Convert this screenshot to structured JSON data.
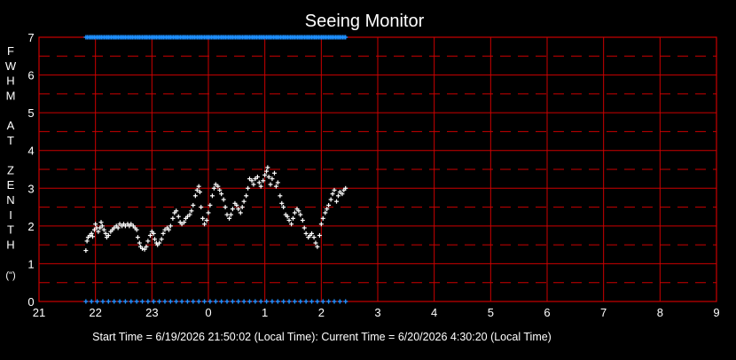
{
  "window": {
    "title": "Seeing Monitor"
  },
  "status": {
    "start_label": "Start Time",
    "start_value": "6/19/2026 21:50:02 (Local Time)",
    "current_label": "Current Time",
    "current_value": "6/20/2026 4:30:20 (Local Time)"
  },
  "colors": {
    "background": "#000000",
    "grid": "#cc0000",
    "points": "#ffffff",
    "markers": "#1e90ff",
    "text": "#ffffff"
  },
  "chart_data": {
    "type": "scatter",
    "title": "Seeing Monitor",
    "ylabel_letters": [
      "F",
      "W",
      "H",
      "M",
      "",
      "A",
      "T",
      "",
      "Z",
      "E",
      "N",
      "I",
      "T",
      "H",
      "",
      "(\")"
    ],
    "xlabel": "",
    "x_axis": "time of day (hours, local time)",
    "xlim": [
      21,
      33
    ],
    "ylim": [
      0,
      7
    ],
    "x_ticks": [
      21,
      22,
      23,
      24,
      25,
      26,
      27,
      28,
      29,
      30,
      31,
      32,
      33
    ],
    "x_tick_labels": [
      "21",
      "22",
      "23",
      "0",
      "1",
      "2",
      "3",
      "4",
      "5",
      "6",
      "7",
      "8",
      "9"
    ],
    "y_ticks": [
      0,
      1,
      2,
      3,
      4,
      5,
      6,
      7
    ],
    "y_tick_labels": [
      "0",
      "1",
      "2",
      "3",
      "4",
      "5",
      "6",
      "7"
    ],
    "y_dashed_lines": [
      0.5,
      1.5,
      2.5,
      3.5,
      4.5,
      5.5,
      6.5
    ],
    "grid": true,
    "legend": "none",
    "series": [
      {
        "marker": "cross",
        "points": [
          [
            21.83,
            1.35
          ],
          [
            21.85,
            1.6
          ],
          [
            21.87,
            1.7
          ],
          [
            21.9,
            1.75
          ],
          [
            21.93,
            1.8
          ],
          [
            21.95,
            1.72
          ],
          [
            21.98,
            1.9
          ],
          [
            22.0,
            2.05
          ],
          [
            22.02,
            1.95
          ],
          [
            22.05,
            1.85
          ],
          [
            22.08,
            1.95
          ],
          [
            22.1,
            2.1
          ],
          [
            22.12,
            2.0
          ],
          [
            22.15,
            1.9
          ],
          [
            22.18,
            1.8
          ],
          [
            22.2,
            1.7
          ],
          [
            22.23,
            1.75
          ],
          [
            22.27,
            1.85
          ],
          [
            22.3,
            1.9
          ],
          [
            22.33,
            1.95
          ],
          [
            22.37,
            2.0
          ],
          [
            22.4,
            1.95
          ],
          [
            22.43,
            2.05
          ],
          [
            22.47,
            2.0
          ],
          [
            22.5,
            2.05
          ],
          [
            22.53,
            2.0
          ],
          [
            22.57,
            2.05
          ],
          [
            22.6,
            2.0
          ],
          [
            22.63,
            2.05
          ],
          [
            22.67,
            2.0
          ],
          [
            22.7,
            1.95
          ],
          [
            22.73,
            1.9
          ],
          [
            22.75,
            1.7
          ],
          [
            22.78,
            1.55
          ],
          [
            22.8,
            1.45
          ],
          [
            22.83,
            1.4
          ],
          [
            22.87,
            1.38
          ],
          [
            22.9,
            1.45
          ],
          [
            22.93,
            1.6
          ],
          [
            22.97,
            1.75
          ],
          [
            23.0,
            1.85
          ],
          [
            23.03,
            1.8
          ],
          [
            23.05,
            1.65
          ],
          [
            23.08,
            1.55
          ],
          [
            23.1,
            1.5
          ],
          [
            23.13,
            1.55
          ],
          [
            23.17,
            1.65
          ],
          [
            23.2,
            1.8
          ],
          [
            23.23,
            1.9
          ],
          [
            23.27,
            1.95
          ],
          [
            23.3,
            1.9
          ],
          [
            23.33,
            2.0
          ],
          [
            23.37,
            2.2
          ],
          [
            23.4,
            2.35
          ],
          [
            23.43,
            2.4
          ],
          [
            23.47,
            2.25
          ],
          [
            23.5,
            2.1
          ],
          [
            23.53,
            2.05
          ],
          [
            23.57,
            2.1
          ],
          [
            23.6,
            2.2
          ],
          [
            23.63,
            2.25
          ],
          [
            23.67,
            2.3
          ],
          [
            23.7,
            2.4
          ],
          [
            23.73,
            2.55
          ],
          [
            23.77,
            2.8
          ],
          [
            23.8,
            2.95
          ],
          [
            23.83,
            3.05
          ],
          [
            23.85,
            2.9
          ],
          [
            23.87,
            2.5
          ],
          [
            23.9,
            2.2
          ],
          [
            23.93,
            2.05
          ],
          [
            23.97,
            2.15
          ],
          [
            24.0,
            2.35
          ],
          [
            24.03,
            2.55
          ],
          [
            24.07,
            2.8
          ],
          [
            24.1,
            3.0
          ],
          [
            24.13,
            3.1
          ],
          [
            24.17,
            3.05
          ],
          [
            24.2,
            2.95
          ],
          [
            24.23,
            2.85
          ],
          [
            24.27,
            2.7
          ],
          [
            24.3,
            2.5
          ],
          [
            24.33,
            2.3
          ],
          [
            24.37,
            2.2
          ],
          [
            24.4,
            2.3
          ],
          [
            24.43,
            2.45
          ],
          [
            24.47,
            2.6
          ],
          [
            24.5,
            2.55
          ],
          [
            24.53,
            2.45
          ],
          [
            24.57,
            2.35
          ],
          [
            24.6,
            2.5
          ],
          [
            24.63,
            2.65
          ],
          [
            24.67,
            2.8
          ],
          [
            24.7,
            3.0
          ],
          [
            24.73,
            3.25
          ],
          [
            24.77,
            3.2
          ],
          [
            24.8,
            3.1
          ],
          [
            24.83,
            3.25
          ],
          [
            24.87,
            3.3
          ],
          [
            24.9,
            3.15
          ],
          [
            24.93,
            3.05
          ],
          [
            24.97,
            3.2
          ],
          [
            25.0,
            3.35
          ],
          [
            25.03,
            3.45
          ],
          [
            25.05,
            3.55
          ],
          [
            25.07,
            3.3
          ],
          [
            25.1,
            3.1
          ],
          [
            25.13,
            3.25
          ],
          [
            25.17,
            3.4
          ],
          [
            25.2,
            3.05
          ],
          [
            25.23,
            3.15
          ],
          [
            25.27,
            2.8
          ],
          [
            25.3,
            2.6
          ],
          [
            25.33,
            2.5
          ],
          [
            25.37,
            2.3
          ],
          [
            25.4,
            2.25
          ],
          [
            25.43,
            2.15
          ],
          [
            25.47,
            2.05
          ],
          [
            25.5,
            2.2
          ],
          [
            25.53,
            2.35
          ],
          [
            25.57,
            2.45
          ],
          [
            25.6,
            2.4
          ],
          [
            25.63,
            2.3
          ],
          [
            25.67,
            2.15
          ],
          [
            25.7,
            1.95
          ],
          [
            25.73,
            1.8
          ],
          [
            25.77,
            1.7
          ],
          [
            25.8,
            1.75
          ],
          [
            25.83,
            1.8
          ],
          [
            25.87,
            1.7
          ],
          [
            25.9,
            1.55
          ],
          [
            25.93,
            1.45
          ],
          [
            25.97,
            1.75
          ],
          [
            26.0,
            2.05
          ],
          [
            26.03,
            2.2
          ],
          [
            26.07,
            2.35
          ],
          [
            26.1,
            2.45
          ],
          [
            26.13,
            2.55
          ],
          [
            26.17,
            2.7
          ],
          [
            26.2,
            2.85
          ],
          [
            26.23,
            2.95
          ],
          [
            26.27,
            2.65
          ],
          [
            26.3,
            2.8
          ],
          [
            26.33,
            2.9
          ],
          [
            26.37,
            2.85
          ],
          [
            26.4,
            2.95
          ],
          [
            26.43,
            3.0
          ]
        ]
      }
    ],
    "top_marker_row": {
      "y": 7,
      "x_start": 21.83,
      "x_end": 26.43
    },
    "bottom_marker_row": {
      "y": 0,
      "x_start": 21.83,
      "x_end": 26.43
    }
  }
}
